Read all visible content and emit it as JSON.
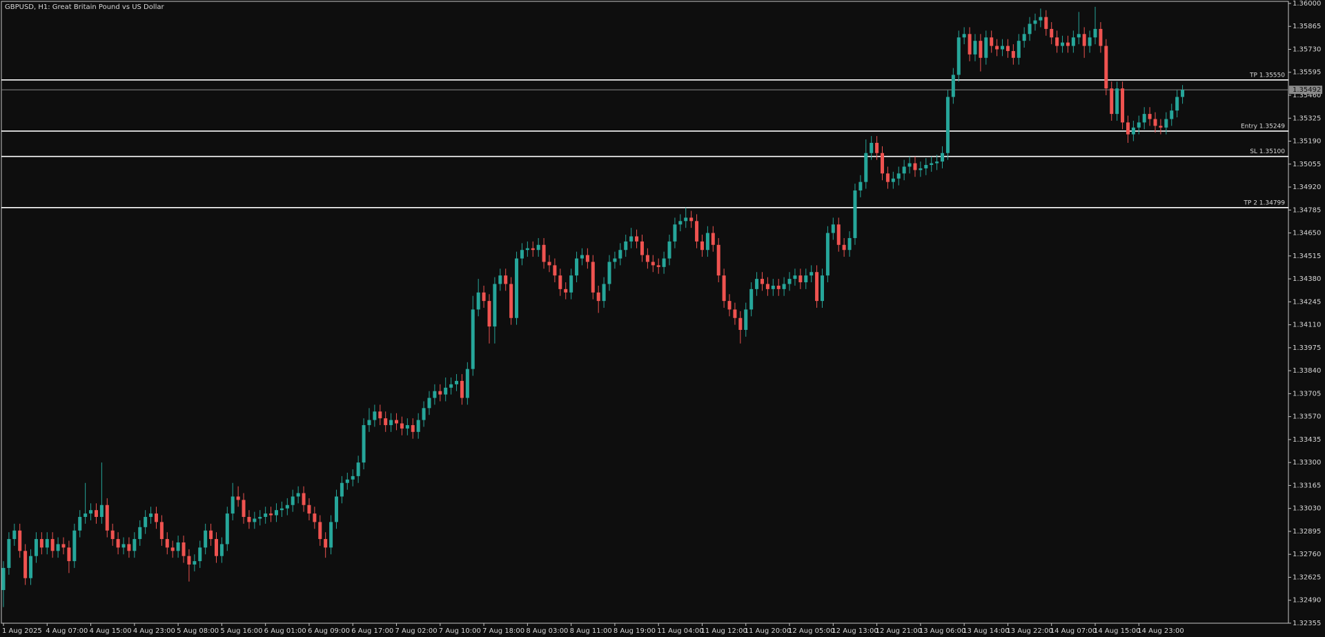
{
  "chart_data": {
    "type": "candlestick",
    "title": "GBPUSD, H1:  Great Britain Pound vs US Dollar",
    "categories": [
      "1 Aug 2025",
      null,
      null,
      null,
      null,
      null,
      null,
      null,
      "4 Aug 07:00",
      null,
      null,
      null,
      null,
      null,
      null,
      null,
      "4 Aug 15:00",
      null,
      null,
      null,
      null,
      null,
      null,
      null,
      "4 Aug 23:00",
      null,
      null,
      null,
      null,
      null,
      null,
      null,
      "5 Aug 08:00",
      null,
      null,
      null,
      null,
      null,
      null,
      null,
      "5 Aug 16:00",
      null,
      null,
      null,
      null,
      null,
      null,
      null,
      "6 Aug 01:00",
      null,
      null,
      null,
      null,
      null,
      null,
      null,
      "6 Aug 09:00",
      null,
      null,
      null,
      null,
      null,
      null,
      null,
      "6 Aug 17:00",
      null,
      null,
      null,
      null,
      null,
      null,
      null,
      "7 Aug 02:00",
      null,
      null,
      null,
      null,
      null,
      null,
      null,
      "7 Aug 10:00",
      null,
      null,
      null,
      null,
      null,
      null,
      null,
      "7 Aug 18:00",
      null,
      null,
      null,
      null,
      null,
      null,
      null,
      "8 Aug 03:00",
      null,
      null,
      null,
      null,
      null,
      null,
      null,
      "8 Aug 11:00",
      null,
      null,
      null,
      null,
      null,
      null,
      null,
      "8 Aug 19:00",
      null,
      null,
      null,
      null,
      null,
      null,
      null,
      "11 Aug 04:00",
      null,
      null,
      null,
      null,
      null,
      null,
      null,
      "11 Aug 12:00",
      null,
      null,
      null,
      null,
      null,
      null,
      null,
      "11 Aug 20:00",
      null,
      null,
      null,
      null,
      null,
      null,
      null,
      "12 Aug 05:00",
      null,
      null,
      null,
      null,
      null,
      null,
      null,
      "12 Aug 13:00",
      null,
      null,
      null,
      null,
      null,
      null,
      null,
      "12 Aug 21:00",
      null,
      null,
      null,
      null,
      null,
      null,
      null,
      "13 Aug 06:00",
      null,
      null,
      null,
      null,
      null,
      null,
      null,
      "13 Aug 14:00",
      null,
      null,
      null,
      null,
      null,
      null,
      null,
      "13 Aug 22:00",
      null,
      null,
      null,
      null,
      null,
      null,
      null,
      "14 Aug 07:00",
      null,
      null,
      null,
      null,
      null,
      null,
      null,
      "14 Aug 15:00",
      null,
      null,
      null,
      null,
      null,
      null,
      null,
      "14 Aug 23:00",
      null,
      null,
      null,
      null,
      null,
      null,
      null,
      null
    ],
    "open": [
      1.3255,
      1.3268,
      1.3285,
      1.329,
      1.3278,
      1.3262,
      1.3275,
      1.3285,
      1.328,
      1.3285,
      1.3278,
      1.3282,
      1.328,
      1.3272,
      1.329,
      1.3298,
      1.33,
      1.3302,
      1.3298,
      1.3305,
      1.329,
      1.3285,
      1.328,
      1.3282,
      1.3278,
      1.3285,
      1.3292,
      1.3298,
      1.33,
      1.3295,
      1.3285,
      1.328,
      1.3278,
      1.3283,
      1.3275,
      1.327,
      1.3272,
      1.328,
      1.329,
      1.3285,
      1.3275,
      1.3282,
      1.33,
      1.331,
      1.3308,
      1.3298,
      1.3295,
      1.3297,
      1.3298,
      1.33,
      1.3299,
      1.3302,
      1.3303,
      1.3305,
      1.331,
      1.3312,
      1.3305,
      1.33,
      1.3295,
      1.3285,
      1.328,
      1.3295,
      1.331,
      1.3318,
      1.332,
      1.3322,
      1.333,
      1.3352,
      1.3355,
      1.336,
      1.3356,
      1.3352,
      1.3355,
      1.3353,
      1.335,
      1.3352,
      1.3348,
      1.3355,
      1.3362,
      1.3368,
      1.3372,
      1.337,
      1.3374,
      1.3376,
      1.3378,
      1.3368,
      1.3385,
      1.342,
      1.343,
      1.3425,
      1.341,
      1.3435,
      1.344,
      1.3435,
      1.3415,
      1.345,
      1.3455,
      1.3456,
      1.3455,
      1.3458,
      1.3448,
      1.3446,
      1.344,
      1.3432,
      1.343,
      1.344,
      1.345,
      1.3452,
      1.3448,
      1.343,
      1.3425,
      1.3435,
      1.3448,
      1.345,
      1.3455,
      1.346,
      1.3463,
      1.346,
      1.3452,
      1.3448,
      1.3446,
      1.3445,
      1.345,
      1.346,
      1.347,
      1.3472,
      1.3474,
      1.3472,
      1.346,
      1.3455,
      1.3465,
      1.3458,
      1.344,
      1.3425,
      1.342,
      1.3415,
      1.3408,
      1.342,
      1.3432,
      1.3438,
      1.3435,
      1.3432,
      1.3434,
      1.3432,
      1.3435,
      1.3438,
      1.344,
      1.3436,
      1.344,
      1.3442,
      1.3425,
      1.344,
      1.3465,
      1.347,
      1.3458,
      1.3455,
      1.3462,
      1.349,
      1.3495,
      1.3512,
      1.3518,
      1.3512,
      1.35,
      1.3495,
      1.3497,
      1.35,
      1.3504,
      1.3506,
      1.3502,
      1.3503,
      1.3505,
      1.3506,
      1.3507,
      1.3512,
      1.3545,
      1.3558,
      1.358,
      1.3582,
      1.357,
      1.3578,
      1.3568,
      1.358,
      1.3575,
      1.3573,
      1.3575,
      1.3572,
      1.3568,
      1.3578,
      1.3582,
      1.3588,
      1.359,
      1.3592,
      1.3585,
      1.358,
      1.3575,
      1.3577,
      1.3575,
      1.358,
      1.3582,
      1.3575,
      1.358,
      1.3585,
      1.3575,
      1.355,
      1.3535,
      1.355,
      1.353,
      1.3523,
      1.3527,
      1.353,
      1.3535,
      1.3532,
      1.3528,
      1.3527,
      1.3532,
      1.3537,
      1.3545
    ],
    "high": [
      1.3272,
      1.3289,
      1.3294,
      1.3294,
      1.3282,
      1.3279,
      1.3289,
      1.3289,
      1.3289,
      1.3289,
      1.3286,
      1.3286,
      1.3284,
      1.3294,
      1.3302,
      1.3318,
      1.3306,
      1.3306,
      1.333,
      1.3309,
      1.3294,
      1.3289,
      1.3286,
      1.3286,
      1.3289,
      1.3296,
      1.3302,
      1.3304,
      1.3304,
      1.3299,
      1.3289,
      1.3284,
      1.3287,
      1.3287,
      1.3279,
      1.3276,
      1.3284,
      1.3294,
      1.3294,
      1.3289,
      1.3286,
      1.3304,
      1.3318,
      1.3316,
      1.3312,
      1.3302,
      1.3301,
      1.3302,
      1.3304,
      1.3304,
      1.3306,
      1.3307,
      1.3309,
      1.3314,
      1.3316,
      1.3316,
      1.3309,
      1.3304,
      1.3299,
      1.3289,
      1.3299,
      1.3314,
      1.3322,
      1.3324,
      1.3326,
      1.3334,
      1.3356,
      1.3362,
      1.3364,
      1.3364,
      1.336,
      1.3359,
      1.3359,
      1.3357,
      1.3356,
      1.3356,
      1.3359,
      1.3366,
      1.3372,
      1.3376,
      1.3376,
      1.338,
      1.338,
      1.3382,
      1.3382,
      1.3389,
      1.3428,
      1.3438,
      1.3434,
      1.3429,
      1.3439,
      1.3444,
      1.3444,
      1.3439,
      1.3454,
      1.3459,
      1.346,
      1.346,
      1.3462,
      1.3462,
      1.3452,
      1.345,
      1.3444,
      1.3436,
      1.3444,
      1.3454,
      1.3456,
      1.3456,
      1.3452,
      1.3434,
      1.3439,
      1.3452,
      1.3454,
      1.3459,
      1.3464,
      1.3468,
      1.3467,
      1.3464,
      1.3456,
      1.3452,
      1.345,
      1.3454,
      1.3464,
      1.3474,
      1.3476,
      1.348,
      1.3478,
      1.3476,
      1.3464,
      1.3469,
      1.3469,
      1.3462,
      1.3444,
      1.3429,
      1.3424,
      1.3419,
      1.3424,
      1.3436,
      1.3442,
      1.3442,
      1.3439,
      1.3438,
      1.3438,
      1.3439,
      1.3442,
      1.3444,
      1.3444,
      1.3444,
      1.3446,
      1.3446,
      1.3444,
      1.3469,
      1.3474,
      1.3474,
      1.3462,
      1.3466,
      1.3494,
      1.3499,
      1.352,
      1.3522,
      1.3522,
      1.3516,
      1.3504,
      1.3501,
      1.3504,
      1.3508,
      1.351,
      1.351,
      1.3507,
      1.3509,
      1.351,
      1.3511,
      1.3516,
      1.3549,
      1.3562,
      1.3584,
      1.3586,
      1.3586,
      1.3582,
      1.3582,
      1.3584,
      1.3584,
      1.3579,
      1.3579,
      1.3579,
      1.3576,
      1.3582,
      1.3586,
      1.3592,
      1.3594,
      1.3597,
      1.3596,
      1.3589,
      1.3584,
      1.3581,
      1.3581,
      1.3584,
      1.3595,
      1.3586,
      1.3584,
      1.3598,
      1.3589,
      1.3579,
      1.3554,
      1.3554,
      1.3554,
      1.3534,
      1.3531,
      1.3534,
      1.3539,
      1.3539,
      1.3536,
      1.3532,
      1.3536,
      1.3541,
      1.3549,
      1.3552
    ],
    "low": [
      1.3245,
      1.3264,
      1.3281,
      1.3274,
      1.3258,
      1.3258,
      1.3271,
      1.3276,
      1.3276,
      1.3274,
      1.3274,
      1.3276,
      1.3265,
      1.3268,
      1.3286,
      1.3294,
      1.3296,
      1.3294,
      1.3294,
      1.3286,
      1.3281,
      1.3276,
      1.3276,
      1.3274,
      1.3274,
      1.3281,
      1.3288,
      1.3294,
      1.3291,
      1.3281,
      1.3276,
      1.3274,
      1.3274,
      1.3271,
      1.326,
      1.3266,
      1.3268,
      1.3276,
      1.3281,
      1.3271,
      1.3271,
      1.3278,
      1.3296,
      1.3304,
      1.3294,
      1.3291,
      1.3291,
      1.3293,
      1.3294,
      1.3295,
      1.3295,
      1.3298,
      1.3299,
      1.3301,
      1.3306,
      1.3301,
      1.3296,
      1.3291,
      1.3281,
      1.3274,
      1.3276,
      1.3291,
      1.3306,
      1.3314,
      1.3316,
      1.3318,
      1.3326,
      1.3348,
      1.3351,
      1.3352,
      1.3348,
      1.3348,
      1.3349,
      1.3346,
      1.3346,
      1.3344,
      1.3344,
      1.3351,
      1.3358,
      1.3364,
      1.3366,
      1.3366,
      1.337,
      1.3372,
      1.3364,
      1.3364,
      1.3381,
      1.3416,
      1.3421,
      1.34,
      1.34,
      1.3431,
      1.3431,
      1.3411,
      1.3411,
      1.3446,
      1.3451,
      1.3451,
      1.3451,
      1.3444,
      1.3442,
      1.3436,
      1.3428,
      1.3426,
      1.3426,
      1.3436,
      1.3446,
      1.3444,
      1.3426,
      1.3418,
      1.3421,
      1.3431,
      1.3444,
      1.3446,
      1.3451,
      1.3456,
      1.3456,
      1.3448,
      1.3444,
      1.3442,
      1.3441,
      1.3441,
      1.3446,
      1.3456,
      1.3466,
      1.3468,
      1.3468,
      1.3456,
      1.3451,
      1.3451,
      1.3454,
      1.3436,
      1.3421,
      1.3416,
      1.3411,
      1.34,
      1.3404,
      1.3416,
      1.3428,
      1.3431,
      1.3428,
      1.3428,
      1.3428,
      1.3428,
      1.3431,
      1.3434,
      1.3432,
      1.3432,
      1.3436,
      1.3421,
      1.3421,
      1.3436,
      1.3461,
      1.3454,
      1.3451,
      1.3451,
      1.3458,
      1.3486,
      1.3491,
      1.3508,
      1.3508,
      1.3496,
      1.3491,
      1.3491,
      1.3493,
      1.3496,
      1.35,
      1.3498,
      1.3498,
      1.3499,
      1.3501,
      1.3502,
      1.3503,
      1.3508,
      1.3541,
      1.3554,
      1.3576,
      1.3566,
      1.3566,
      1.356,
      1.3564,
      1.3571,
      1.3569,
      1.3569,
      1.3568,
      1.3564,
      1.3564,
      1.3574,
      1.3578,
      1.3584,
      1.3586,
      1.3581,
      1.3576,
      1.3571,
      1.3571,
      1.3571,
      1.3571,
      1.3576,
      1.3568,
      1.3571,
      1.3576,
      1.3571,
      1.3546,
      1.3531,
      1.3531,
      1.3526,
      1.3518,
      1.3519,
      1.3523,
      1.3526,
      1.3528,
      1.3524,
      1.3523,
      1.3523,
      1.3528,
      1.3533,
      1.3541
    ],
    "close": [
      1.3268,
      1.3285,
      1.329,
      1.3278,
      1.3262,
      1.3275,
      1.3285,
      1.328,
      1.3285,
      1.3278,
      1.3282,
      1.328,
      1.3272,
      1.329,
      1.3298,
      1.33,
      1.3302,
      1.3298,
      1.3305,
      1.329,
      1.3285,
      1.328,
      1.3282,
      1.3278,
      1.3285,
      1.3292,
      1.3298,
      1.33,
      1.3295,
      1.3285,
      1.328,
      1.3278,
      1.3283,
      1.3275,
      1.327,
      1.3272,
      1.328,
      1.329,
      1.3285,
      1.3275,
      1.3282,
      1.33,
      1.331,
      1.3308,
      1.3298,
      1.3295,
      1.3297,
      1.3298,
      1.33,
      1.3299,
      1.3302,
      1.3303,
      1.3305,
      1.331,
      1.3312,
      1.3305,
      1.33,
      1.3295,
      1.3285,
      1.328,
      1.3295,
      1.331,
      1.3318,
      1.332,
      1.3322,
      1.333,
      1.3352,
      1.3355,
      1.336,
      1.3356,
      1.3352,
      1.3355,
      1.3353,
      1.335,
      1.3352,
      1.3348,
      1.3355,
      1.3362,
      1.3368,
      1.3372,
      1.337,
      1.3374,
      1.3376,
      1.3378,
      1.3368,
      1.3385,
      1.342,
      1.343,
      1.3425,
      1.341,
      1.3435,
      1.344,
      1.3435,
      1.3415,
      1.345,
      1.3455,
      1.3456,
      1.3455,
      1.3458,
      1.3448,
      1.3446,
      1.344,
      1.3432,
      1.343,
      1.344,
      1.345,
      1.3452,
      1.3448,
      1.343,
      1.3425,
      1.3435,
      1.3448,
      1.345,
      1.3455,
      1.346,
      1.3463,
      1.346,
      1.3452,
      1.3448,
      1.3446,
      1.3445,
      1.345,
      1.346,
      1.347,
      1.3472,
      1.3474,
      1.3472,
      1.346,
      1.3455,
      1.3465,
      1.3458,
      1.344,
      1.3425,
      1.342,
      1.3415,
      1.3408,
      1.342,
      1.3432,
      1.3438,
      1.3435,
      1.3432,
      1.3434,
      1.3432,
      1.3435,
      1.3438,
      1.344,
      1.3436,
      1.344,
      1.3442,
      1.3425,
      1.344,
      1.3465,
      1.347,
      1.3458,
      1.3455,
      1.3462,
      1.349,
      1.3495,
      1.3512,
      1.3518,
      1.3512,
      1.35,
      1.3495,
      1.3497,
      1.35,
      1.3504,
      1.3506,
      1.3502,
      1.3503,
      1.3505,
      1.3506,
      1.3507,
      1.3512,
      1.3545,
      1.3558,
      1.358,
      1.3582,
      1.357,
      1.3578,
      1.3568,
      1.358,
      1.3575,
      1.3573,
      1.3575,
      1.3572,
      1.3568,
      1.3578,
      1.3582,
      1.3588,
      1.359,
      1.3592,
      1.3585,
      1.358,
      1.3575,
      1.3577,
      1.3575,
      1.358,
      1.3582,
      1.3575,
      1.358,
      1.3585,
      1.3575,
      1.355,
      1.3535,
      1.355,
      1.353,
      1.3523,
      1.3527,
      1.353,
      1.3535,
      1.3532,
      1.3528,
      1.3527,
      1.3532,
      1.3537,
      1.3545,
      1.35492
    ],
    "up_color": "#26a69a",
    "down_color": "#ef5350",
    "ylim": [
      1.32355,
      1.36012
    ],
    "yticks": [
      {
        "value": 1.36,
        "label": "1.36000"
      },
      {
        "value": 1.35865,
        "label": "1.35865"
      },
      {
        "value": 1.3573,
        "label": "1.35730"
      },
      {
        "value": 1.35595,
        "label": "1.35595"
      },
      {
        "value": 1.3546,
        "label": "1.35460"
      },
      {
        "value": 1.35325,
        "label": "1.35325"
      },
      {
        "value": 1.3519,
        "label": "1.35190"
      },
      {
        "value": 1.35055,
        "label": "1.35055"
      },
      {
        "value": 1.3492,
        "label": "1.34920"
      },
      {
        "value": 1.34785,
        "label": "1.34785"
      },
      {
        "value": 1.3465,
        "label": "1.34650"
      },
      {
        "value": 1.34515,
        "label": "1.34515"
      },
      {
        "value": 1.3438,
        "label": "1.34380"
      },
      {
        "value": 1.34245,
        "label": "1.34245"
      },
      {
        "value": 1.3411,
        "label": "1.34110"
      },
      {
        "value": 1.33975,
        "label": "1.33975"
      },
      {
        "value": 1.3384,
        "label": "1.33840"
      },
      {
        "value": 1.33705,
        "label": "1.33705"
      },
      {
        "value": 1.3357,
        "label": "1.33570"
      },
      {
        "value": 1.33435,
        "label": "1.33435"
      },
      {
        "value": 1.333,
        "label": "1.33300"
      },
      {
        "value": 1.33165,
        "label": "1.33165"
      },
      {
        "value": 1.3303,
        "label": "1.33030"
      },
      {
        "value": 1.32895,
        "label": "1.32895"
      },
      {
        "value": 1.3276,
        "label": "1.32760"
      },
      {
        "value": 1.32625,
        "label": "1.32625"
      },
      {
        "value": 1.3249,
        "label": "1.32490"
      },
      {
        "value": 1.32355,
        "label": "1.32355"
      }
    ],
    "levels": [
      {
        "value": 1.3555,
        "label": "TP 1.35550"
      },
      {
        "value": 1.35249,
        "label": "Entry 1.35249"
      },
      {
        "value": 1.351,
        "label": "SL 1.35100"
      },
      {
        "value": 1.34799,
        "label": "TP 2 1.34799"
      }
    ],
    "price_line": {
      "value": 1.35492,
      "label": "1.35492"
    }
  }
}
